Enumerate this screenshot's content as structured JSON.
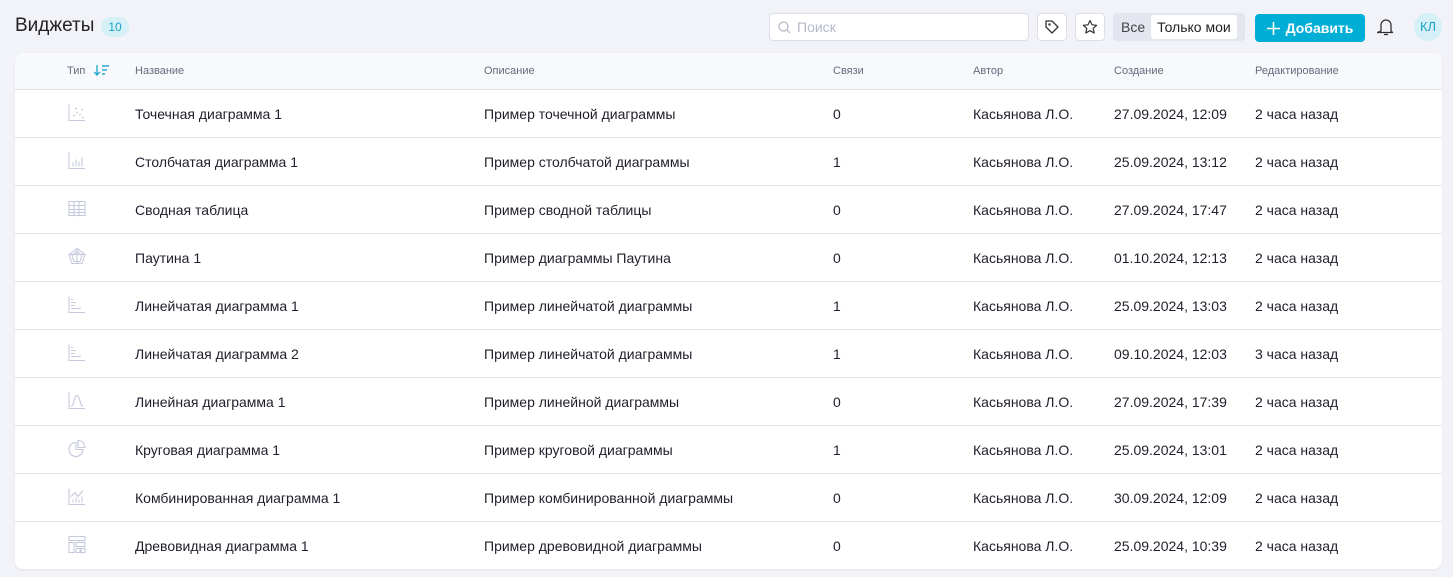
{
  "header": {
    "title": "Виджеты",
    "count": "10",
    "search_placeholder": "Поиск",
    "filter_all": "Все",
    "filter_mine": "Только мои",
    "add_label": "Добавить",
    "avatar": "КЛ"
  },
  "colors": {
    "accent": "#00aed6",
    "icon": "#c5c9dc"
  },
  "table": {
    "columns": [
      "Тип",
      "Название",
      "Описание",
      "Связи",
      "Автор",
      "Создание",
      "Редактирование"
    ],
    "rows": [
      {
        "icon": "scatter-chart-icon",
        "name": "Точечная диаграмма 1",
        "desc": "Пример точечной диаграммы",
        "links": "0",
        "author": "Касьянова Л.О.",
        "created": "27.09.2024, 12:09",
        "edited": "2 часа назад"
      },
      {
        "icon": "bar-chart-icon",
        "name": "Столбчатая диаграмма 1",
        "desc": "Пример столбчатой диаграммы",
        "links": "1",
        "author": "Касьянова Л.О.",
        "created": "25.09.2024, 13:12",
        "edited": "2 часа назад"
      },
      {
        "icon": "pivot-table-icon",
        "name": "Сводная таблица",
        "desc": "Пример сводной таблицы",
        "links": "0",
        "author": "Касьянова Л.О.",
        "created": "27.09.2024, 17:47",
        "edited": "2 часа назад"
      },
      {
        "icon": "radar-chart-icon",
        "name": "Паутина 1",
        "desc": "Пример диаграммы Паутина",
        "links": "0",
        "author": "Касьянова Л.О.",
        "created": "01.10.2024, 12:13",
        "edited": "2 часа назад"
      },
      {
        "icon": "horizontal-bar-chart-icon",
        "name": "Линейчатая диаграмма 1",
        "desc": "Пример линейчатой диаграммы",
        "links": "1",
        "author": "Касьянова Л.О.",
        "created": "25.09.2024, 13:03",
        "edited": "2 часа назад"
      },
      {
        "icon": "horizontal-bar-chart-icon",
        "name": "Линейчатая диаграмма 2",
        "desc": "Пример линейчатой диаграммы",
        "links": "1",
        "author": "Касьянова Л.О.",
        "created": "09.10.2024, 12:03",
        "edited": "3 часа назад"
      },
      {
        "icon": "line-chart-icon",
        "name": "Линейная диаграмма 1",
        "desc": "Пример линейной диаграммы",
        "links": "0",
        "author": "Касьянова Л.О.",
        "created": "27.09.2024, 17:39",
        "edited": "2 часа назад"
      },
      {
        "icon": "pie-chart-icon",
        "name": "Круговая диаграмма 1",
        "desc": "Пример круговой диаграммы",
        "links": "1",
        "author": "Касьянова Л.О.",
        "created": "25.09.2024, 13:01",
        "edited": "2 часа назад"
      },
      {
        "icon": "combo-chart-icon",
        "name": "Комбинированная диаграмма 1",
        "desc": "Пример комбинированной диаграммы",
        "links": "0",
        "author": "Касьянова Л.О.",
        "created": "30.09.2024, 12:09",
        "edited": "2 часа назад"
      },
      {
        "icon": "treemap-chart-icon",
        "name": "Древовидная диаграмма 1",
        "desc": "Пример древовидной диаграммы",
        "links": "0",
        "author": "Касьянова Л.О.",
        "created": "25.09.2024, 10:39",
        "edited": "2 часа назад"
      }
    ]
  }
}
